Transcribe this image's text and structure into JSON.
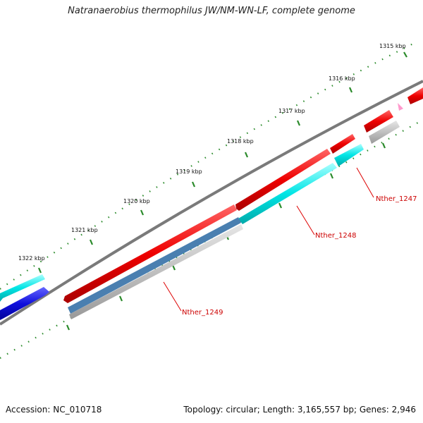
{
  "title": "Natranaerobius thermophilus JW/NM-WN-LF, complete genome",
  "accession": "Accession: NC_010718",
  "summary": "Topology: circular; Length: 3,165,557 bp; Genes: 2,946",
  "kbp_labels": [
    "1315 kbp",
    "1316 kbp",
    "1317 kbp",
    "1318 kbp",
    "1319 kbp",
    "1320 kbp",
    "1321 kbp",
    "1322 kbp"
  ],
  "gene_labels": [
    "Nther_1247",
    "Nther_1248",
    "Nther_1249"
  ],
  "colors": {
    "backbone": "#7a7a7a",
    "cds_forward": "#ee0000",
    "cds_light": "#00e5e5",
    "cds_blue": "#1010dd",
    "steel": "#4a7fb0",
    "gray_feature": "#b8b8b8",
    "pink_marker": "#ff99cc",
    "ticks": "#2a8a2a",
    "label_line": "#dd0000"
  }
}
